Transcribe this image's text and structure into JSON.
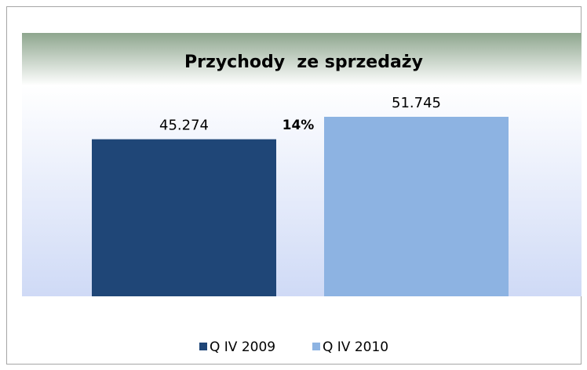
{
  "chart_data": {
    "type": "bar",
    "title": "Przychody  ze sprzedaży",
    "categories": [
      null
    ],
    "series": [
      {
        "name": "Q IV 2009",
        "color": "#1f4677",
        "values": [
          45274
        ],
        "value_labels": [
          "45.274"
        ]
      },
      {
        "name": "Q IV 2010",
        "color": "#8db3e2",
        "values": [
          51745
        ],
        "value_labels": [
          "51.745"
        ]
      }
    ],
    "annotations": [
      "14%"
    ],
    "legend": "bottom"
  }
}
